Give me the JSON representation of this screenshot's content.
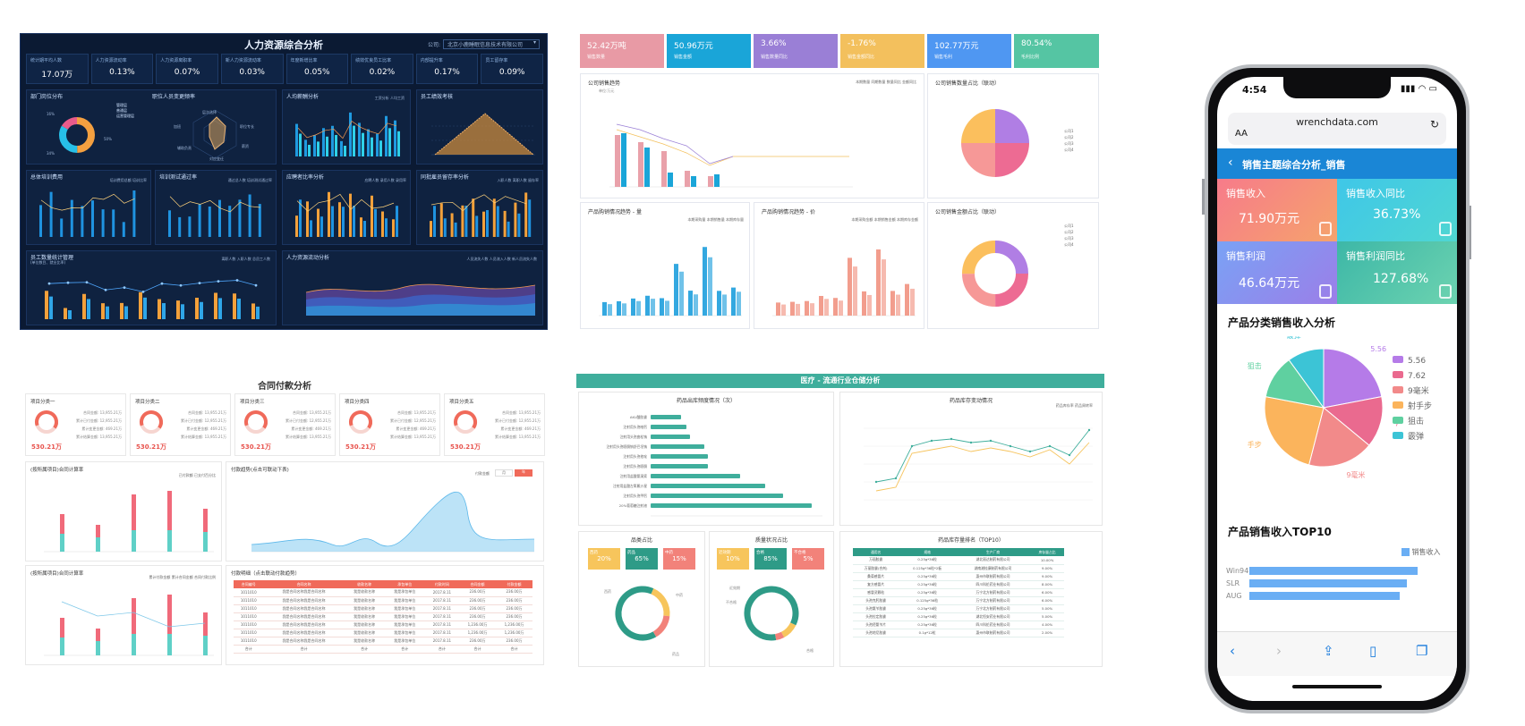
{
  "hr": {
    "title": "人力资源综合分析",
    "company_label": "公司:",
    "company_value": "北京小鹿睡眠信息技术有限公司",
    "kpis": [
      {
        "label": "统计期平均人数",
        "value": "17.07万"
      },
      {
        "label": "人力资源流动率",
        "value": "0.13%"
      },
      {
        "label": "人力资源离职率",
        "value": "0.07%"
      },
      {
        "label": "新人力资源流动率",
        "value": "0.03%"
      },
      {
        "label": "年度新增比率",
        "value": "0.05%"
      },
      {
        "label": "绩效优良员工比率",
        "value": "0.02%"
      },
      {
        "label": "内部提升率",
        "value": "0.17%"
      },
      {
        "label": "员工留存率",
        "value": "0.09%"
      }
    ],
    "cards": {
      "dept": "部门岗位分布",
      "dept_legend": [
        "管理层",
        "普通层",
        "运营管理层"
      ],
      "dept_values": [
        "16%",
        "34%",
        "50%"
      ],
      "change": "职位人员变更频率",
      "change_axes": [
        "层次选择",
        "职位专长",
        "加班",
        "薪资",
        "辅助负责",
        "对应变迁"
      ],
      "salary": "人均薪酬分析",
      "salary_legend": [
        "工资分析",
        "人均工资"
      ],
      "perf": "员工绩效考核",
      "training": "总体培训费用",
      "training_legend": [
        "培训费用总额",
        "培训比率"
      ],
      "pass": "培训测试通过率",
      "pass_legend": [
        "通过总人数",
        "培训测试通过率"
      ],
      "hire": "应聘者比率分析",
      "hire_legend": [
        "应聘人数",
        "录用人数",
        "录用率"
      ],
      "retain": "同批雇员留存率分析",
      "retain_legend": [
        "入职人数",
        "离职人数",
        "留存率"
      ],
      "count": "员工数量统计管理",
      "count_sub": "(单位数目、就业比率)",
      "count_legend": [
        "离职人数",
        "入职人数",
        "总员工人数"
      ],
      "flow": "人力资源流动分析",
      "flow_legend": [
        "人员流失人数",
        "人员流入人数",
        "新人员流失人数"
      ]
    }
  },
  "sales": {
    "stats": [
      {
        "value": "52.42万吨",
        "label": "销售数量",
        "color": "#e89aa5"
      },
      {
        "value": "50.96万元",
        "label": "销售金额",
        "color": "#1aa5d8"
      },
      {
        "value": "3.66%",
        "label": "销售数量同比",
        "color": "#9a7fd6"
      },
      {
        "value": "-1.76%",
        "label": "销售金额同比",
        "color": "#f3c05d"
      },
      {
        "value": "102.77万元",
        "label": "销售毛利",
        "color": "#4f97f2"
      },
      {
        "value": "80.54%",
        "label": "毛利比例",
        "color": "#55c5a3"
      }
    ],
    "trend_title": "公司销售趋势",
    "trend_unit": "单位:万元",
    "trend_legend": [
      "本期数量",
      "同期数量",
      "数量同比",
      "金额同比"
    ],
    "pie1_title": "公司销售数量占比（联动）",
    "pie2_title": "公司销售金额占比（联动）",
    "pie_legend": [
      "公司1",
      "公司2",
      "公司3",
      "公司4"
    ],
    "prod_qty_title": "产品购销情况趋势 - 量",
    "prod_qty_legend": [
      "本期采购量",
      "本期销售量",
      "本期库存量"
    ],
    "prod_price_title": "产品购销情况趋势 - 价",
    "prod_price_legend": [
      "本期采购金额",
      "本期销售金额",
      "本期库存金额"
    ]
  },
  "contract": {
    "title": "合同付款分析",
    "projects": [
      {
        "name": "项目分类一",
        "amount": "530.21万"
      },
      {
        "name": "项目分类二",
        "amount": "530.21万"
      },
      {
        "name": "项目分类三",
        "amount": "530.21万"
      },
      {
        "name": "项目分类四",
        "amount": "530.21万"
      },
      {
        "name": "项目分类五",
        "amount": "530.21万"
      }
    ],
    "project_lines": [
      "合同金额: 13,955.21万",
      "累计已付金额: 12,955.21万",
      "累计变更金额: 469.21万",
      "累计结算金额: 13,955.21万"
    ],
    "bar_title": "(按所属项目)合同计算率",
    "bar_legend": [
      "已付款额",
      "已支付百分比"
    ],
    "trend_title": "付款趋势(点击可联动下表)",
    "trend_legend": "付款金额",
    "trend_tabs": [
      "月",
      "年"
    ],
    "bar2_title": "(按所属项目)合同计算率",
    "bar2_legend": [
      "累计付款金额",
      "累计合同金额",
      "合同付款比例"
    ],
    "table_title": "付款明细（点击联动付款趋势）",
    "table_headers": [
      "合同编号",
      "合同名称",
      "收款名称",
      "承包单位",
      "付款时间",
      "合同金额",
      "付款金额"
    ],
    "table_rows": [
      [
        "1011010",
        "我是合同名称我是合同名称",
        "我是收款名称",
        "我是承包单位",
        "2017.8.11",
        "236.00万",
        "236.00万"
      ],
      [
        "1011010",
        "我是合同名称我是合同名称",
        "我是收款名称",
        "我是承包单位",
        "2017.8.11",
        "236.00万",
        "236.00万"
      ],
      [
        "1011010",
        "我是合同名称我是合同名称",
        "我是收款名称",
        "我是承包单位",
        "2017.8.11",
        "236.00万",
        "236.00万"
      ],
      [
        "1011010",
        "我是合同名称我是合同名称",
        "我是收款名称",
        "我是承包单位",
        "2017.8.11",
        "236.00万",
        "236.00万"
      ],
      [
        "1011010",
        "我是合同名称我是合同名称",
        "我是收款名称",
        "我是承包单位",
        "2017.8.11",
        "1,236.00万",
        "1,236.00万"
      ],
      [
        "1011010",
        "我是合同名称我是合同名称",
        "我是收款名称",
        "我是承包单位",
        "2017.8.11",
        "1,236.00万",
        "1,236.00万"
      ],
      [
        "1011010",
        "我是合同名称我是合同名称",
        "我是收款名称",
        "我是承包单位",
        "2017.8.11",
        "236.00万",
        "236.00万"
      ],
      [
        "合计",
        "合计",
        "合计",
        "合计",
        "合计",
        "合计",
        "合计"
      ]
    ]
  },
  "medical": {
    "title": "医疗 - 流通行业仓储分析",
    "freq_title": "药品出库频度情况（次）",
    "freq_categories": [
      "AKU酸胶囊",
      "注射用头孢唑肟",
      "注射用头孢曲松钠",
      "注射用头孢哌酮钠舒巴坦钠",
      "注射用头孢他啶",
      "注射用头孢哌酮",
      "注射用盐酸氨溴索",
      "注射用盐酸左氧氟沙星",
      "注射用头孢甲肟",
      "20%葡萄糖注射液"
    ],
    "stock_title": "药品库存变动情况",
    "stock_legend": [
      "药品库存率",
      "药品周转率"
    ],
    "cat_title": "品类占比",
    "cat_tags": [
      {
        "label": "西药",
        "value": "20%"
      },
      {
        "label": "药品",
        "value": "65%"
      },
      {
        "label": "中药",
        "value": "15%"
      }
    ],
    "cat_labels": [
      "西药",
      "中药",
      "药品"
    ],
    "quality_title": "质量状况占比",
    "quality_tags": [
      {
        "label": "近效期",
        "value": "10%"
      },
      {
        "label": "合格",
        "value": "85%"
      },
      {
        "label": "不合格",
        "value": "5%"
      }
    ],
    "quality_labels": [
      "近效期",
      "不合格",
      "合格"
    ],
    "rank_title": "药品库存量排名（TOP10）",
    "rank_headers": [
      "通用名",
      "规格",
      "生产厂商",
      "库存量占比"
    ],
    "rank_rows": [
      [
        "万丽胶囊",
        "0.25g*36粒",
        "湖北丽达制药有限公司",
        "10.00%"
      ],
      [
        "万丽胶囊(合剂)",
        "0.125g*36粒*2板",
        "湖南湘桂康制药有限公司",
        "9.00%"
      ],
      [
        "桑菊感冒片",
        "0.25g*36粒",
        "惠州市联制药有限公司",
        "9.00%"
      ],
      [
        "复方感冒片",
        "0.25g*36粒",
        "四川科伦药业有限公司",
        "8.00%"
      ],
      [
        "感冒灵颗粒",
        "0.25g*36粒",
        "万宁北方制药有限公司",
        "6.00%"
      ],
      [
        "头孢克肟胶囊",
        "0.125g*36粒",
        "万宁北方制药有限公司",
        "6.00%"
      ],
      [
        "头孢氨苄胶囊",
        "0.25g*36粒",
        "万宁北方制药有限公司",
        "5.00%"
      ],
      [
        "头孢拉定胶囊",
        "0.25g*36粒",
        "湖北恒安药业有限公司",
        "5.00%"
      ],
      [
        "头孢羟氨苄片",
        "0.25g*36粒",
        "四川科伦药业有限公司",
        "4.00%"
      ],
      [
        "头孢地尼胶囊",
        "0.1g*12粒",
        "惠州市联制药有限公司",
        "2.00%"
      ]
    ]
  },
  "phone": {
    "time": "4:54",
    "url": "wrenchdata.com",
    "aa": "AA",
    "nav_title": "销售主题综合分析_销售",
    "tiles": [
      {
        "label": "销售收入",
        "value": "71.90万元"
      },
      {
        "label": "销售收入同比",
        "value": "36.73%"
      },
      {
        "label": "销售利润",
        "value": "46.64万元"
      },
      {
        "label": "销售利润同比",
        "value": "127.68%"
      }
    ],
    "pie_title": "产品分类销售收入分析",
    "pie_labels": [
      "5.56",
      "7.62",
      "9毫米",
      "射手步",
      "狙击",
      "霰弹"
    ],
    "legend": [
      "5.56",
      "7.62",
      "9毫米",
      "射手步",
      "狙击",
      "霰弹"
    ],
    "legend_colors": [
      "#b57be8",
      "#ea6a8f",
      "#f28a8a",
      "#fbb45c",
      "#5fd0a0",
      "#3cc4d6"
    ],
    "top_title": "产品销售收入TOP10",
    "top_legend": "销售收入",
    "top_rows": [
      "Win94",
      "SLR",
      "AUG"
    ]
  }
}
